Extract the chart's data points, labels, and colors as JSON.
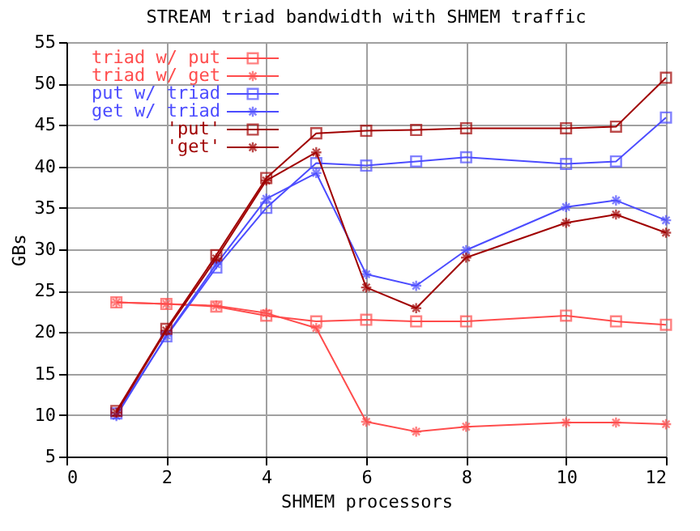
{
  "chart_data": {
    "type": "line",
    "title": "STREAM triad bandwidth with SHMEM traffic",
    "xlabel": "SHMEM processors",
    "ylabel": "GBs",
    "x": [
      1,
      2,
      3,
      4,
      5,
      6,
      7,
      8,
      10,
      11,
      12
    ],
    "series": [
      {
        "name": "triad w/ put",
        "color": "#ff4c4c",
        "marker": "square",
        "values": [
          23.6,
          23.4,
          23.1,
          22.0,
          21.3,
          21.5,
          21.3,
          21.3,
          22.0,
          21.3,
          20.9
        ]
      },
      {
        "name": "triad w/ get",
        "color": "#ff4c4c",
        "marker": "cross",
        "values": [
          23.6,
          23.4,
          23.2,
          22.3,
          20.5,
          9.2,
          8.0,
          8.6,
          9.1,
          9.1,
          8.9
        ]
      },
      {
        "name": "put w/ triad",
        "color": "#4c4cff",
        "marker": "square",
        "values": [
          10.2,
          19.5,
          27.8,
          35.0,
          40.4,
          40.1,
          40.6,
          41.1,
          40.3,
          40.6,
          45.9
        ]
      },
      {
        "name": "get w/ triad",
        "color": "#4c4cff",
        "marker": "cross",
        "values": [
          9.9,
          19.6,
          28.2,
          36.1,
          39.2,
          27.0,
          25.6,
          29.9,
          35.1,
          35.9,
          33.5
        ]
      },
      {
        "name": "'put'",
        "color": "#a00000",
        "marker": "square",
        "values": [
          10.5,
          20.4,
          29.3,
          38.6,
          44.0,
          44.3,
          44.4,
          44.6,
          44.6,
          44.8,
          50.7
        ]
      },
      {
        "name": "'get'",
        "color": "#a00000",
        "marker": "cross",
        "values": [
          10.3,
          20.2,
          28.9,
          38.3,
          41.7,
          25.4,
          22.9,
          29.0,
          33.2,
          34.2,
          32.0
        ]
      }
    ],
    "xlim": [
      0,
      12
    ],
    "xticks": [
      0,
      2,
      4,
      6,
      8,
      10,
      12
    ],
    "ylim": [
      5,
      55
    ],
    "yticks": [
      5,
      10,
      15,
      20,
      25,
      30,
      35,
      40,
      45,
      50,
      55
    ],
    "grid": true,
    "legend": "top left"
  }
}
